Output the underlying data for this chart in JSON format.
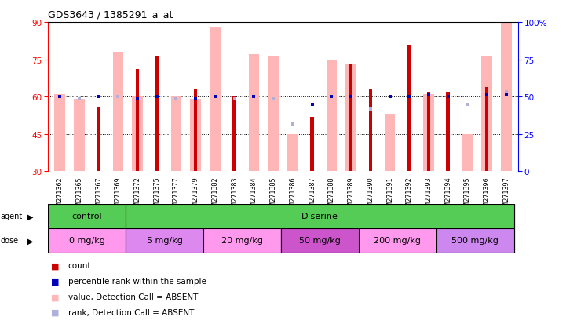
{
  "title": "GDS3643 / 1385291_a_at",
  "samples": [
    "GSM271362",
    "GSM271365",
    "GSM271367",
    "GSM271369",
    "GSM271372",
    "GSM271375",
    "GSM271377",
    "GSM271379",
    "GSM271382",
    "GSM271383",
    "GSM271384",
    "GSM271385",
    "GSM271386",
    "GSM271387",
    "GSM271388",
    "GSM271389",
    "GSM271390",
    "GSM271391",
    "GSM271392",
    "GSM271393",
    "GSM271394",
    "GSM271395",
    "GSM271396",
    "GSM271397"
  ],
  "pink_bars": [
    61,
    59,
    null,
    78,
    60,
    null,
    60,
    59,
    88,
    null,
    77,
    76,
    45,
    null,
    75,
    73,
    null,
    53,
    null,
    61,
    null,
    45,
    76,
    90
  ],
  "red_bars": [
    null,
    null,
    56,
    null,
    71,
    76,
    null,
    63,
    null,
    60,
    null,
    null,
    null,
    52,
    null,
    73,
    63,
    null,
    81,
    62,
    62,
    null,
    64,
    null
  ],
  "blue_squares": [
    60,
    null,
    60,
    null,
    59,
    60,
    null,
    59,
    60,
    null,
    60,
    null,
    null,
    57,
    60,
    60,
    null,
    60,
    60,
    61,
    60,
    null,
    61,
    61
  ],
  "light_blue_sq": [
    null,
    59,
    null,
    60,
    null,
    null,
    59,
    null,
    null,
    59,
    null,
    59,
    49,
    null,
    null,
    null,
    55,
    null,
    null,
    null,
    null,
    57,
    null,
    62
  ],
  "ylim_left": [
    30,
    90
  ],
  "ylim_right": [
    0,
    100
  ],
  "yticks_left": [
    30,
    45,
    60,
    75,
    90
  ],
  "yticks_right": [
    0,
    25,
    50,
    75,
    100
  ],
  "pink_color": "#ffb6b6",
  "red_color": "#cc0000",
  "blue_color": "#0000bb",
  "light_blue_color": "#b0b0dd",
  "agent_green": "#55cc55",
  "dose_colors": [
    "#ff99ee",
    "#dd88ee",
    "#ff99ee",
    "#cc55cc",
    "#ff99ee",
    "#cc88ee"
  ],
  "dose_labels": [
    "0 mg/kg",
    "5 mg/kg",
    "20 mg/kg",
    "50 mg/kg",
    "200 mg/kg",
    "500 mg/kg"
  ],
  "dose_boundaries": [
    -0.5,
    3.5,
    7.5,
    11.5,
    15.5,
    19.5,
    23.5
  ],
  "agent_boundaries": [
    -0.5,
    3.5,
    23.5
  ],
  "agent_labels": [
    "control",
    "D-serine"
  ]
}
